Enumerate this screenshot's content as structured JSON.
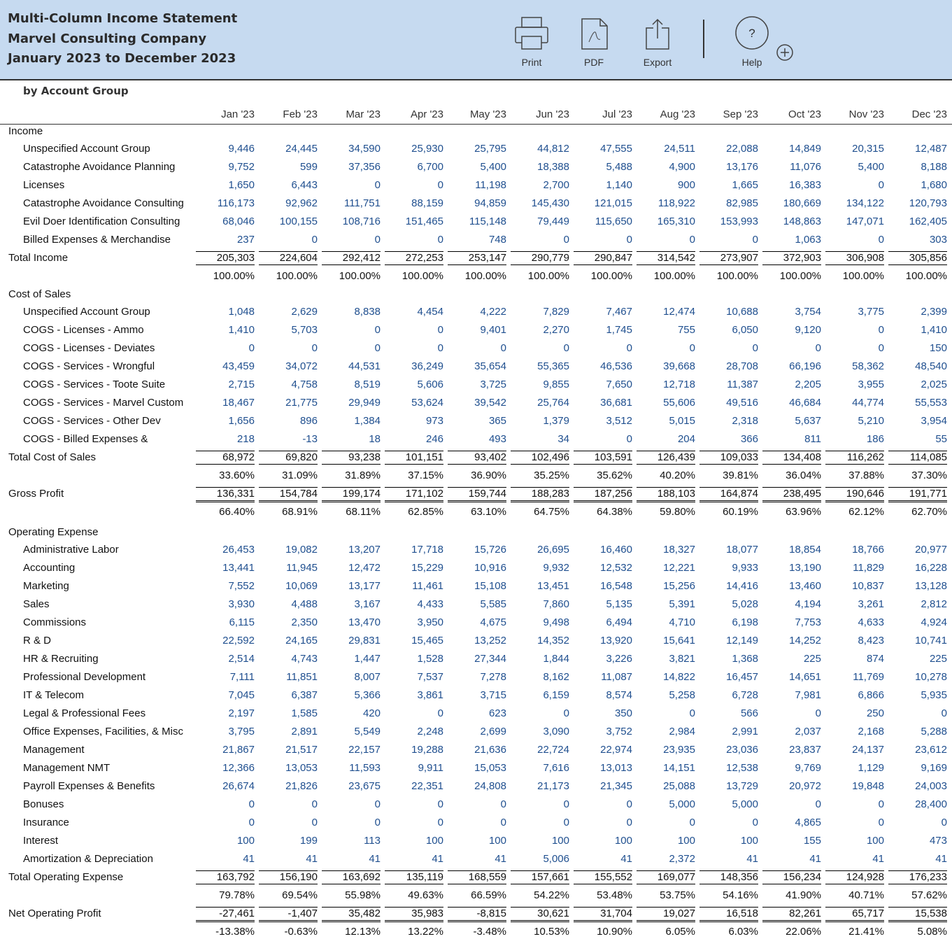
{
  "header": {
    "title_lines": [
      "Multi-Column Income Statement",
      "Marvel Consulting Company",
      "January 2023 to December 2023"
    ]
  },
  "toolbar": {
    "print": "Print",
    "pdf": "PDF",
    "export": "Export",
    "help": "Help",
    "help_icon": "?"
  },
  "report": {
    "subtitle": "by Account Group",
    "months": [
      "Jan '23",
      "Feb '23",
      "Mar '23",
      "Apr '23",
      "May '23",
      "Jun '23",
      "Jul '23",
      "Aug '23",
      "Sep '23",
      "Oct '23",
      "Nov '23",
      "Dec '23"
    ],
    "blocks": [
      {
        "heading": "Income",
        "rows": [
          {
            "label": "Unspecified Account Group",
            "values": [
              "9,446",
              "24,445",
              "34,590",
              "25,930",
              "25,795",
              "44,812",
              "47,555",
              "24,511",
              "22,088",
              "14,849",
              "20,315",
              "12,487"
            ]
          },
          {
            "label": "Catastrophe Avoidance Planning",
            "values": [
              "9,752",
              "599",
              "37,356",
              "6,700",
              "5,400",
              "18,388",
              "5,488",
              "4,900",
              "13,176",
              "11,076",
              "5,400",
              "8,188"
            ]
          },
          {
            "label": "Licenses",
            "values": [
              "1,650",
              "6,443",
              "0",
              "0",
              "11,198",
              "2,700",
              "1,140",
              "900",
              "1,665",
              "16,383",
              "0",
              "1,680"
            ]
          },
          {
            "label": "Catastrophe Avoidance Consulting",
            "values": [
              "116,173",
              "92,962",
              "111,751",
              "88,159",
              "94,859",
              "145,430",
              "121,015",
              "118,922",
              "82,985",
              "180,669",
              "134,122",
              "120,793"
            ]
          },
          {
            "label": "Evil Doer Identification Consulting",
            "values": [
              "68,046",
              "100,155",
              "108,716",
              "151,465",
              "115,148",
              "79,449",
              "115,650",
              "165,310",
              "153,993",
              "148,863",
              "147,071",
              "162,405"
            ]
          },
          {
            "label": "Billed Expenses & Merchandise",
            "values": [
              "237",
              "0",
              "0",
              "0",
              "748",
              "0",
              "0",
              "0",
              "0",
              "1,063",
              "0",
              "303"
            ]
          }
        ],
        "total": {
          "label": "Total Income",
          "values": [
            "205,303",
            "224,604",
            "292,412",
            "272,253",
            "253,147",
            "290,779",
            "290,847",
            "314,542",
            "273,907",
            "372,903",
            "306,908",
            "305,856"
          ],
          "percents": [
            "100.00%",
            "100.00%",
            "100.00%",
            "100.00%",
            "100.00%",
            "100.00%",
            "100.00%",
            "100.00%",
            "100.00%",
            "100.00%",
            "100.00%",
            "100.00%"
          ]
        }
      },
      {
        "heading": "Cost of Sales",
        "rows": [
          {
            "label": "Unspecified Account Group",
            "values": [
              "1,048",
              "2,629",
              "8,838",
              "4,454",
              "4,222",
              "7,829",
              "7,467",
              "12,474",
              "10,688",
              "3,754",
              "3,775",
              "2,399"
            ]
          },
          {
            "label": "COGS - Licenses - Ammo",
            "values": [
              "1,410",
              "5,703",
              "0",
              "0",
              "9,401",
              "2,270",
              "1,745",
              "755",
              "6,050",
              "9,120",
              "0",
              "1,410"
            ]
          },
          {
            "label": "COGS - Licenses - Deviates",
            "values": [
              "0",
              "0",
              "0",
              "0",
              "0",
              "0",
              "0",
              "0",
              "0",
              "0",
              "0",
              "150"
            ]
          },
          {
            "label": "COGS - Services - Wrongful",
            "values": [
              "43,459",
              "34,072",
              "44,531",
              "36,249",
              "35,654",
              "55,365",
              "46,536",
              "39,668",
              "28,708",
              "66,196",
              "58,362",
              "48,540"
            ]
          },
          {
            "label": "COGS - Services - Toote Suite",
            "values": [
              "2,715",
              "4,758",
              "8,519",
              "5,606",
              "3,725",
              "9,855",
              "7,650",
              "12,718",
              "11,387",
              "2,205",
              "3,955",
              "2,025"
            ]
          },
          {
            "label": "COGS - Services - Marvel Custom",
            "values": [
              "18,467",
              "21,775",
              "29,949",
              "53,624",
              "39,542",
              "25,764",
              "36,681",
              "55,606",
              "49,516",
              "46,684",
              "44,774",
              "55,553"
            ]
          },
          {
            "label": "COGS - Services - Other Dev",
            "values": [
              "1,656",
              "896",
              "1,384",
              "973",
              "365",
              "1,379",
              "3,512",
              "5,015",
              "2,318",
              "5,637",
              "5,210",
              "3,954"
            ]
          },
          {
            "label": "COGS - Billed Expenses &",
            "values": [
              "218",
              "-13",
              "18",
              "246",
              "493",
              "34",
              "0",
              "204",
              "366",
              "811",
              "186",
              "55"
            ]
          }
        ],
        "total": {
          "label": "Total Cost of Sales",
          "values": [
            "68,972",
            "69,820",
            "93,238",
            "101,151",
            "93,402",
            "102,496",
            "103,591",
            "126,439",
            "109,033",
            "134,408",
            "116,262",
            "114,085"
          ],
          "percents": [
            "33.60%",
            "31.09%",
            "31.89%",
            "37.15%",
            "36.90%",
            "35.25%",
            "35.62%",
            "40.20%",
            "39.81%",
            "36.04%",
            "37.88%",
            "37.30%"
          ]
        }
      },
      {
        "total": {
          "label": "Gross Profit",
          "values": [
            "136,331",
            "154,784",
            "199,174",
            "171,102",
            "159,744",
            "188,283",
            "187,256",
            "188,103",
            "164,874",
            "238,495",
            "190,646",
            "191,771"
          ],
          "percents": [
            "66.40%",
            "68.91%",
            "68.11%",
            "62.85%",
            "63.10%",
            "64.75%",
            "64.38%",
            "59.80%",
            "60.19%",
            "63.96%",
            "62.12%",
            "62.70%"
          ]
        }
      },
      {
        "heading": "Operating Expense",
        "rows": [
          {
            "label": "Administrative Labor",
            "values": [
              "26,453",
              "19,082",
              "13,207",
              "17,718",
              "15,726",
              "26,695",
              "16,460",
              "18,327",
              "18,077",
              "18,854",
              "18,766",
              "20,977"
            ]
          },
          {
            "label": "Accounting",
            "values": [
              "13,441",
              "11,945",
              "12,472",
              "15,229",
              "10,916",
              "9,932",
              "12,532",
              "12,221",
              "9,933",
              "13,190",
              "11,829",
              "16,228"
            ]
          },
          {
            "label": "Marketing",
            "values": [
              "7,552",
              "10,069",
              "13,177",
              "11,461",
              "15,108",
              "13,451",
              "16,548",
              "15,256",
              "14,416",
              "13,460",
              "10,837",
              "13,128"
            ]
          },
          {
            "label": "Sales",
            "values": [
              "3,930",
              "4,488",
              "3,167",
              "4,433",
              "5,585",
              "7,860",
              "5,135",
              "5,391",
              "5,028",
              "4,194",
              "3,261",
              "2,812"
            ]
          },
          {
            "label": "Commissions",
            "values": [
              "6,115",
              "2,350",
              "13,470",
              "3,950",
              "4,675",
              "9,498",
              "6,494",
              "4,710",
              "6,198",
              "7,753",
              "4,633",
              "4,924"
            ]
          },
          {
            "label": "R & D",
            "values": [
              "22,592",
              "24,165",
              "29,831",
              "15,465",
              "13,252",
              "14,352",
              "13,920",
              "15,641",
              "12,149",
              "14,252",
              "8,423",
              "10,741"
            ]
          },
          {
            "label": "HR & Recruiting",
            "values": [
              "2,514",
              "4,743",
              "1,447",
              "1,528",
              "27,344",
              "1,844",
              "3,226",
              "3,821",
              "1,368",
              "225",
              "874",
              "225"
            ]
          },
          {
            "label": "Professional Development",
            "values": [
              "7,111",
              "11,851",
              "8,007",
              "7,537",
              "7,278",
              "8,162",
              "11,087",
              "14,822",
              "16,457",
              "14,651",
              "11,769",
              "10,278"
            ]
          },
          {
            "label": "IT & Telecom",
            "values": [
              "7,045",
              "6,387",
              "5,366",
              "3,861",
              "3,715",
              "6,159",
              "8,574",
              "5,258",
              "6,728",
              "7,981",
              "6,866",
              "5,935"
            ]
          },
          {
            "label": "Legal & Professional Fees",
            "values": [
              "2,197",
              "1,585",
              "420",
              "0",
              "623",
              "0",
              "350",
              "0",
              "566",
              "0",
              "250",
              "0"
            ]
          },
          {
            "label": "Office Expenses, Facilities, & Misc",
            "values": [
              "3,795",
              "2,891",
              "5,549",
              "2,248",
              "2,699",
              "3,090",
              "3,752",
              "2,984",
              "2,991",
              "2,037",
              "2,168",
              "5,288"
            ]
          },
          {
            "label": "Management",
            "values": [
              "21,867",
              "21,517",
              "22,157",
              "19,288",
              "21,636",
              "22,724",
              "22,974",
              "23,935",
              "23,036",
              "23,837",
              "24,137",
              "23,612"
            ]
          },
          {
            "label": "Management NMT",
            "values": [
              "12,366",
              "13,053",
              "11,593",
              "9,911",
              "15,053",
              "7,616",
              "13,013",
              "14,151",
              "12,538",
              "9,769",
              "1,129",
              "9,169"
            ]
          },
          {
            "label": "Payroll Expenses & Benefits",
            "values": [
              "26,674",
              "21,826",
              "23,675",
              "22,351",
              "24,808",
              "21,173",
              "21,345",
              "25,088",
              "13,729",
              "20,972",
              "19,848",
              "24,003"
            ]
          },
          {
            "label": "Bonuses",
            "values": [
              "0",
              "0",
              "0",
              "0",
              "0",
              "0",
              "0",
              "5,000",
              "5,000",
              "0",
              "0",
              "28,400"
            ]
          },
          {
            "label": "Insurance",
            "values": [
              "0",
              "0",
              "0",
              "0",
              "0",
              "0",
              "0",
              "0",
              "0",
              "4,865",
              "0",
              "0"
            ]
          },
          {
            "label": "Interest",
            "values": [
              "100",
              "199",
              "113",
              "100",
              "100",
              "100",
              "100",
              "100",
              "100",
              "155",
              "100",
              "473"
            ]
          },
          {
            "label": "Amortization & Depreciation",
            "values": [
              "41",
              "41",
              "41",
              "41",
              "41",
              "5,006",
              "41",
              "2,372",
              "41",
              "41",
              "41",
              "41"
            ]
          }
        ],
        "total": {
          "label": "Total Operating Expense",
          "values": [
            "163,792",
            "156,190",
            "163,692",
            "135,119",
            "168,559",
            "157,661",
            "155,552",
            "169,077",
            "148,356",
            "156,234",
            "124,928",
            "176,233"
          ],
          "percents": [
            "79.78%",
            "69.54%",
            "55.98%",
            "49.63%",
            "66.59%",
            "54.22%",
            "53.48%",
            "53.75%",
            "54.16%",
            "41.90%",
            "40.71%",
            "57.62%"
          ]
        }
      },
      {
        "total": {
          "label": "Net Operating Profit",
          "values": [
            "-27,461",
            "-1,407",
            "35,482",
            "35,983",
            "-8,815",
            "30,621",
            "31,704",
            "19,027",
            "16,518",
            "82,261",
            "65,717",
            "15,538"
          ],
          "percents": [
            "-13.38%",
            "-0.63%",
            "12.13%",
            "13.22%",
            "-3.48%",
            "10.53%",
            "10.90%",
            "6.05%",
            "6.03%",
            "22.06%",
            "21.41%",
            "5.08%"
          ]
        }
      }
    ]
  }
}
